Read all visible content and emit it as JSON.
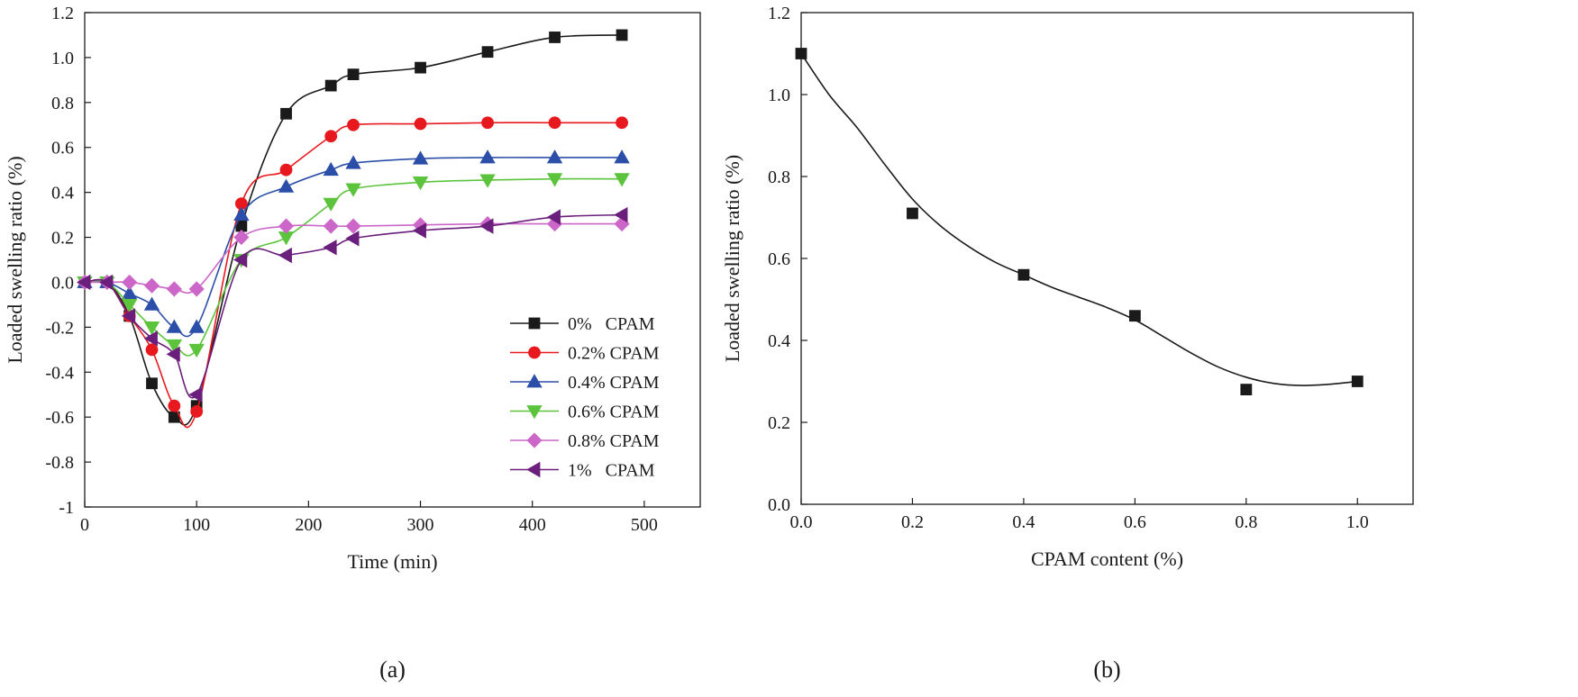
{
  "chart_data": [
    {
      "type": "line",
      "panel_label": "(a)",
      "xlabel": "Time (min)",
      "ylabel": "Loaded swelling ratio (%)",
      "xlim": [
        0,
        550
      ],
      "ylim": [
        -1,
        1.2
      ],
      "xticks": [
        0,
        100,
        200,
        300,
        400,
        500
      ],
      "xtick_labels": [
        "0",
        "100",
        "200",
        "300",
        "400",
        "500"
      ],
      "yticks": [
        -1,
        -0.8,
        -0.6,
        -0.4,
        -0.2,
        0,
        0.2,
        0.4,
        0.6,
        0.8,
        1.0,
        1.2
      ],
      "ytick_labels": [
        "-1",
        "-0.8",
        "-0.6",
        "-0.4",
        "-0.2",
        "0.0",
        "0.2",
        "0.4",
        "0.6",
        "0.8",
        "1.0",
        "1.2"
      ],
      "legend_position": "bottom-right",
      "x": [
        0,
        20,
        40,
        60,
        80,
        100,
        140,
        180,
        220,
        240,
        300,
        360,
        420,
        480
      ],
      "series": [
        {
          "name": "0%   CPAM",
          "color": "#1a1a1a",
          "marker": "square",
          "values": [
            0,
            0,
            -0.15,
            -0.45,
            -0.6,
            -0.55,
            0.25,
            0.75,
            0.875,
            0.925,
            0.955,
            1.025,
            1.09,
            1.1
          ]
        },
        {
          "name": "0.2% CPAM",
          "color": "#e8191e",
          "marker": "circle",
          "values": [
            0,
            0,
            -0.15,
            -0.3,
            -0.55,
            -0.575,
            0.35,
            0.5,
            0.65,
            0.7,
            0.705,
            0.71,
            0.71,
            0.71
          ]
        },
        {
          "name": "0.4% CPAM",
          "color": "#2b4fa8",
          "marker": "triangle-up",
          "values": [
            0,
            0,
            -0.05,
            -0.1,
            -0.2,
            -0.2,
            0.3,
            0.425,
            0.5,
            0.53,
            0.55,
            0.555,
            0.555,
            0.555
          ]
        },
        {
          "name": "0.6% CPAM",
          "color": "#5cc43c",
          "marker": "triangle-down",
          "values": [
            0,
            0,
            -0.1,
            -0.2,
            -0.28,
            -0.3,
            0.1,
            0.2,
            0.35,
            0.415,
            0.445,
            0.455,
            0.46,
            0.46
          ]
        },
        {
          "name": "0.8% CPAM",
          "color": "#cc66c8",
          "marker": "diamond",
          "values": [
            0,
            0,
            0,
            -0.015,
            -0.03,
            -0.03,
            0.2,
            0.25,
            0.25,
            0.25,
            0.255,
            0.26,
            0.26,
            0.26
          ]
        },
        {
          "name": "1%   CPAM",
          "color": "#6b1f7c",
          "marker": "triangle-left",
          "values": [
            0,
            0,
            -0.15,
            -0.25,
            -0.32,
            -0.5,
            0.1,
            0.12,
            0.155,
            0.195,
            0.23,
            0.25,
            0.29,
            0.3
          ]
        }
      ]
    },
    {
      "type": "scatter",
      "panel_label": "(b)",
      "xlabel": "CPAM content (%)",
      "ylabel": "Loaded swelling ratio (%)",
      "xlim": [
        0,
        1.1
      ],
      "ylim": [
        0,
        1.2
      ],
      "xticks": [
        0,
        0.2,
        0.4,
        0.6,
        0.8,
        1.0
      ],
      "xtick_labels": [
        "0.0",
        "0.2",
        "0.4",
        "0.6",
        "0.8",
        "1.0"
      ],
      "yticks": [
        0,
        0.2,
        0.4,
        0.6,
        0.8,
        1.0,
        1.2
      ],
      "ytick_labels": [
        "0.0",
        "0.2",
        "0.4",
        "0.6",
        "0.8",
        "1.0",
        "1.2"
      ],
      "x": [
        0,
        0.2,
        0.4,
        0.6,
        0.8,
        1.0
      ],
      "values": [
        1.1,
        0.71,
        0.56,
        0.46,
        0.28,
        0.3
      ],
      "fit_curve": {
        "x": [
          0,
          0.05,
          0.1,
          0.15,
          0.2,
          0.25,
          0.3,
          0.35,
          0.4,
          0.45,
          0.5,
          0.55,
          0.6,
          0.65,
          0.7,
          0.75,
          0.8,
          0.85,
          0.9,
          0.95,
          1.0
        ],
        "y": [
          1.1,
          1.0,
          0.92,
          0.83,
          0.745,
          0.68,
          0.63,
          0.59,
          0.56,
          0.53,
          0.505,
          0.48,
          0.45,
          0.41,
          0.37,
          0.335,
          0.31,
          0.295,
          0.29,
          0.293,
          0.3
        ]
      },
      "marker": "square",
      "color": "#1a1a1a"
    }
  ]
}
